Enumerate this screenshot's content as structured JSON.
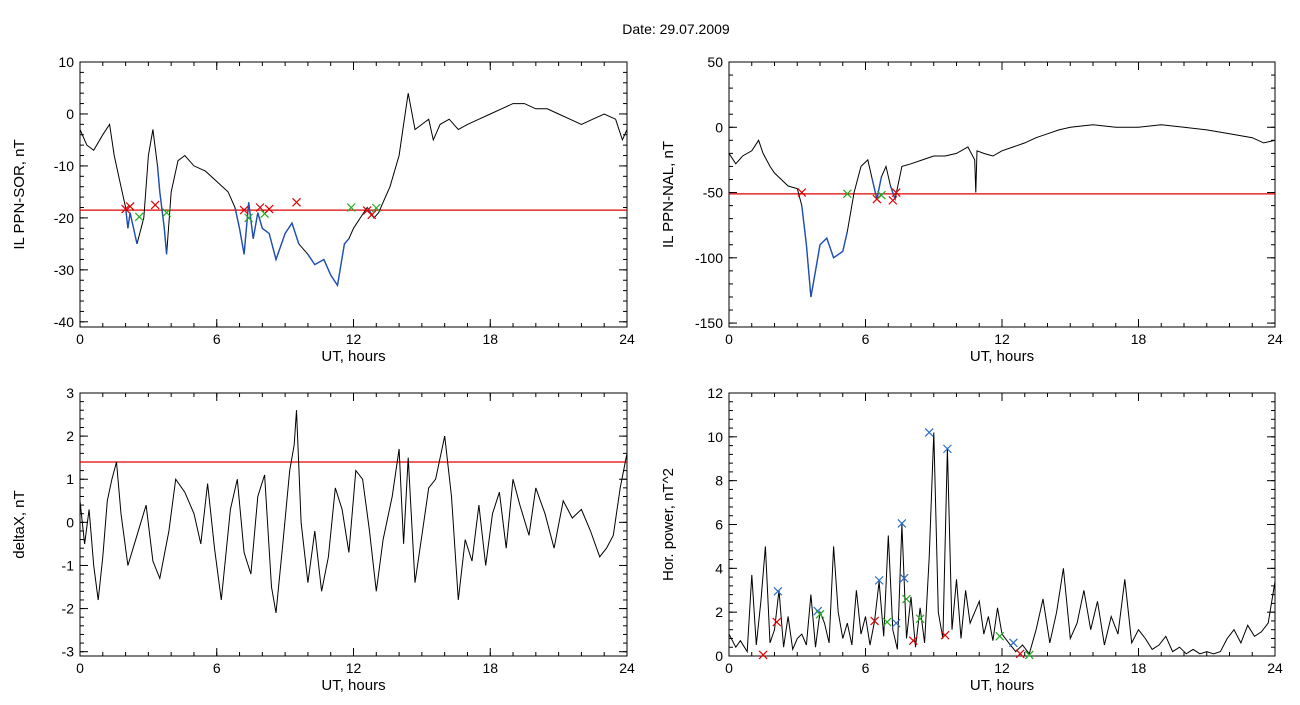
{
  "page": {
    "title": "Date:  29.07.2009"
  },
  "colors": {
    "threshold": "#e00000",
    "segment": "#1f4fb5",
    "line": "#000000",
    "cross_red": "#e00000",
    "cross_green": "#22aa22",
    "cross_blue": "#2b6cc4"
  },
  "chart_data": [
    {
      "type": "line",
      "id": "p1",
      "title": "",
      "xlabel": "UT, hours",
      "ylabel": "IL PPN-SOR, nT",
      "xlim": [
        0,
        24
      ],
      "ylim": [
        -41,
        10
      ],
      "xticks": [
        "0",
        "6",
        "12",
        "18",
        "24"
      ],
      "yticks": [
        "10",
        "0",
        "-10",
        "-20",
        "-30",
        "-40"
      ],
      "grid": false,
      "threshold": -18.5,
      "x": [
        0,
        0.3,
        0.6,
        1.0,
        1.3,
        1.5,
        1.8,
        2.0,
        2.1,
        2.2,
        2.5,
        2.8,
        3.0,
        3.2,
        3.4,
        3.5,
        3.7,
        3.8,
        4.0,
        4.3,
        4.6,
        5.0,
        5.5,
        6.0,
        6.5,
        6.8,
        7.0,
        7.2,
        7.4,
        7.6,
        7.8,
        8.0,
        8.3,
        8.6,
        9.0,
        9.3,
        9.6,
        10.0,
        10.3,
        10.7,
        11.0,
        11.3,
        11.6,
        11.8,
        12.0,
        12.3,
        12.6,
        12.9,
        13.1,
        13.3,
        13.6,
        14.0,
        14.2,
        14.4,
        14.7,
        15.0,
        15.3,
        15.5,
        15.8,
        16.2,
        16.6,
        17.0,
        17.5,
        18.0,
        18.5,
        19.0,
        19.5,
        20.0,
        20.5,
        21.0,
        21.5,
        22.0,
        22.5,
        23.0,
        23.5,
        23.8,
        24.0
      ],
      "y": [
        -3,
        -6,
        -7,
        -4,
        -2,
        -8,
        -14,
        -18,
        -22,
        -19,
        -25,
        -20,
        -8,
        -3,
        -10,
        -15,
        -22,
        -27,
        -15,
        -9,
        -8,
        -10,
        -11,
        -13,
        -15,
        -18,
        -22,
        -27,
        -17,
        -24,
        -19,
        -22,
        -23,
        -28,
        -23,
        -21,
        -25,
        -27,
        -29,
        -28,
        -31,
        -33,
        -25,
        -24,
        -22,
        -20,
        -18,
        -20,
        -19,
        -17,
        -14,
        -8,
        -2,
        4,
        -3,
        -2,
        -1,
        -5,
        -2,
        -1,
        -3,
        -2,
        -1,
        0,
        1,
        2,
        2,
        1,
        1,
        0,
        -1,
        -2,
        -1,
        0,
        -1,
        -5,
        -3
      ],
      "segments": [
        [
          2.0,
          2.7
        ],
        [
          3.3,
          3.9
        ],
        [
          6.8,
          9.7
        ],
        [
          9.7,
          11.9
        ],
        [
          12.5,
          13.0
        ]
      ],
      "crosses": [
        {
          "x": 2.0,
          "y": -18.3,
          "c": "red"
        },
        {
          "x": 2.2,
          "y": -17.8,
          "c": "red"
        },
        {
          "x": 2.6,
          "y": -19.8,
          "c": "green"
        },
        {
          "x": 3.3,
          "y": -17.5,
          "c": "red"
        },
        {
          "x": 3.8,
          "y": -19.0,
          "c": "green"
        },
        {
          "x": 7.2,
          "y": -18.5,
          "c": "red"
        },
        {
          "x": 7.4,
          "y": -20.0,
          "c": "green"
        },
        {
          "x": 7.9,
          "y": -18.0,
          "c": "red"
        },
        {
          "x": 8.1,
          "y": -19.2,
          "c": "green"
        },
        {
          "x": 8.3,
          "y": -18.3,
          "c": "red"
        },
        {
          "x": 9.5,
          "y": -17.0,
          "c": "red"
        },
        {
          "x": 11.9,
          "y": -18.0,
          "c": "green"
        },
        {
          "x": 12.6,
          "y": -18.6,
          "c": "red"
        },
        {
          "x": 12.8,
          "y": -19.4,
          "c": "red"
        },
        {
          "x": 13.0,
          "y": -18.1,
          "c": "green"
        }
      ]
    },
    {
      "type": "line",
      "id": "p2",
      "title": "",
      "xlabel": "UT, hours",
      "ylabel": "IL PPN-NAL, nT",
      "xlim": [
        0,
        24
      ],
      "ylim": [
        -153,
        50
      ],
      "xticks": [
        "0",
        "6",
        "12",
        "18",
        "24"
      ],
      "yticks": [
        "50",
        "0",
        "-50",
        "-100",
        "-150"
      ],
      "grid": false,
      "threshold": -51,
      "x": [
        0,
        0.3,
        0.6,
        1.0,
        1.3,
        1.5,
        1.8,
        2.0,
        2.3,
        2.6,
        3.0,
        3.2,
        3.4,
        3.6,
        3.8,
        4.0,
        4.3,
        4.6,
        5.0,
        5.2,
        5.5,
        5.8,
        6.1,
        6.3,
        6.5,
        6.7,
        6.9,
        7.1,
        7.3,
        7.6,
        8.0,
        8.5,
        9.0,
        9.5,
        10.0,
        10.5,
        10.8,
        10.85,
        10.9,
        11.2,
        11.6,
        12.0,
        12.5,
        13.0,
        13.5,
        14.0,
        14.5,
        15.0,
        16.0,
        17.0,
        18.0,
        19.0,
        20.0,
        21.0,
        22.0,
        23.0,
        23.5,
        24.0
      ],
      "y": [
        -20,
        -28,
        -22,
        -18,
        -10,
        -20,
        -30,
        -35,
        -40,
        -45,
        -47,
        -60,
        -90,
        -130,
        -110,
        -90,
        -85,
        -100,
        -95,
        -80,
        -50,
        -30,
        -25,
        -40,
        -55,
        -38,
        -30,
        -45,
        -55,
        -30,
        -28,
        -25,
        -22,
        -22,
        -20,
        -15,
        -25,
        -50,
        -18,
        -20,
        -22,
        -18,
        -15,
        -12,
        -8,
        -5,
        -2,
        0,
        2,
        0,
        0,
        2,
        0,
        -2,
        -5,
        -8,
        -12,
        -10
      ],
      "segments": [
        [
          3.2,
          5.2
        ],
        [
          6.3,
          6.7
        ],
        [
          7.0,
          7.4
        ]
      ],
      "crosses": [
        {
          "x": 3.2,
          "y": -50,
          "c": "red"
        },
        {
          "x": 5.2,
          "y": -51,
          "c": "green"
        },
        {
          "x": 6.5,
          "y": -55,
          "c": "red"
        },
        {
          "x": 6.7,
          "y": -52,
          "c": "green"
        },
        {
          "x": 7.2,
          "y": -56,
          "c": "red"
        },
        {
          "x": 7.35,
          "y": -50,
          "c": "red"
        }
      ]
    },
    {
      "type": "line",
      "id": "p3",
      "title": "",
      "xlabel": "UT, hours",
      "ylabel": "deltaX, nT",
      "xlim": [
        0,
        24
      ],
      "ylim": [
        -3.1,
        3.0
      ],
      "xticks": [
        "0",
        "6",
        "12",
        "18",
        "24"
      ],
      "yticks": [
        "3",
        "2",
        "1",
        "0",
        "-1",
        "-2",
        "-3"
      ],
      "grid": false,
      "threshold": 1.4,
      "x": [
        0,
        0.2,
        0.4,
        0.6,
        0.8,
        1.0,
        1.2,
        1.4,
        1.6,
        1.8,
        2.1,
        2.5,
        2.9,
        3.2,
        3.5,
        3.9,
        4.2,
        4.6,
        5.0,
        5.3,
        5.6,
        5.9,
        6.2,
        6.6,
        6.9,
        7.2,
        7.5,
        7.8,
        8.1,
        8.4,
        8.6,
        8.9,
        9.2,
        9.4,
        9.5,
        9.7,
        10.0,
        10.3,
        10.6,
        10.9,
        11.2,
        11.5,
        11.8,
        12.1,
        12.4,
        12.7,
        13.0,
        13.3,
        13.7,
        14.0,
        14.2,
        14.4,
        14.7,
        15.0,
        15.3,
        15.6,
        16.0,
        16.3,
        16.6,
        16.9,
        17.2,
        17.5,
        17.8,
        18.1,
        18.4,
        18.7,
        19.0,
        19.3,
        19.7,
        20.0,
        20.4,
        20.8,
        21.2,
        21.6,
        22.0,
        22.4,
        22.8,
        23.1,
        23.4,
        23.7,
        24.0
      ],
      "y": [
        0.5,
        -0.5,
        0.3,
        -1.0,
        -1.8,
        -0.8,
        0.5,
        1.0,
        1.4,
        0.2,
        -1.0,
        -0.3,
        0.4,
        -0.9,
        -1.3,
        -0.2,
        1.0,
        0.7,
        0.2,
        -0.5,
        0.9,
        -0.6,
        -1.8,
        0.3,
        1.0,
        -0.7,
        -1.2,
        0.6,
        1.1,
        -1.5,
        -2.1,
        -0.5,
        1.2,
        1.8,
        2.6,
        0.0,
        -1.4,
        -0.2,
        -1.6,
        -0.8,
        0.8,
        0.3,
        -0.7,
        1.2,
        1.0,
        -0.2,
        -1.6,
        -0.4,
        0.6,
        1.7,
        -0.5,
        1.5,
        -1.4,
        -0.3,
        0.8,
        1.0,
        2.0,
        0.6,
        -1.8,
        -0.4,
        -0.9,
        0.4,
        -1.0,
        0.2,
        0.7,
        -0.6,
        1.0,
        0.4,
        -0.3,
        0.8,
        0.2,
        -0.6,
        0.5,
        0.1,
        0.3,
        -0.2,
        -0.8,
        -0.6,
        -0.3,
        0.8,
        1.6
      ],
      "segments": [],
      "crosses": []
    },
    {
      "type": "line",
      "id": "p4",
      "title": "",
      "xlabel": "UT, hours",
      "ylabel": "Hor. power, nT^2",
      "xlim": [
        0,
        24
      ],
      "ylim": [
        0,
        12
      ],
      "xticks": [
        "0",
        "6",
        "12",
        "18",
        "24"
      ],
      "yticks": [
        "12",
        "10",
        "8",
        "6",
        "4",
        "2",
        "0"
      ],
      "grid": false,
      "threshold": null,
      "x": [
        0,
        0.3,
        0.5,
        0.8,
        1.0,
        1.2,
        1.4,
        1.6,
        1.8,
        2.0,
        2.2,
        2.4,
        2.6,
        2.8,
        3.0,
        3.2,
        3.4,
        3.6,
        3.8,
        4.0,
        4.2,
        4.4,
        4.6,
        4.8,
        5.0,
        5.2,
        5.4,
        5.6,
        5.8,
        6.0,
        6.2,
        6.4,
        6.6,
        6.8,
        7.0,
        7.2,
        7.4,
        7.6,
        7.8,
        8.0,
        8.2,
        8.4,
        8.6,
        8.8,
        9.0,
        9.2,
        9.4,
        9.6,
        9.8,
        10.0,
        10.2,
        10.4,
        10.6,
        10.8,
        11.0,
        11.2,
        11.4,
        11.6,
        11.8,
        12.0,
        12.3,
        12.6,
        12.9,
        13.2,
        13.5,
        13.8,
        14.1,
        14.4,
        14.7,
        15.0,
        15.3,
        15.6,
        15.9,
        16.2,
        16.5,
        16.8,
        17.1,
        17.4,
        17.7,
        18.0,
        18.3,
        18.6,
        18.9,
        19.2,
        19.5,
        19.8,
        20.1,
        20.4,
        20.7,
        21.0,
        21.3,
        21.6,
        21.9,
        22.2,
        22.5,
        22.8,
        23.1,
        23.4,
        23.7,
        24.0
      ],
      "y": [
        1.0,
        0.4,
        0.7,
        0.2,
        3.7,
        0.5,
        2.5,
        5.0,
        0.6,
        1.2,
        3.0,
        0.4,
        1.8,
        0.3,
        0.8,
        1.0,
        0.5,
        2.8,
        0.4,
        2.0,
        1.5,
        0.6,
        5.0,
        2.0,
        0.8,
        1.5,
        0.5,
        3.0,
        1.0,
        1.8,
        0.5,
        1.6,
        3.4,
        0.9,
        5.5,
        1.2,
        0.3,
        6.0,
        0.8,
        2.7,
        0.4,
        2.2,
        0.6,
        4.5,
        10.2,
        2.0,
        0.8,
        9.5,
        1.2,
        3.5,
        0.8,
        3.0,
        1.5,
        2.0,
        2.5,
        1.0,
        1.8,
        0.7,
        2.2,
        1.0,
        0.6,
        0.2,
        0.5,
        0.1,
        1.2,
        2.6,
        0.6,
        2.0,
        4.0,
        0.8,
        1.5,
        3.0,
        1.2,
        2.5,
        0.5,
        1.8,
        1.0,
        3.5,
        0.6,
        1.2,
        0.8,
        0.3,
        0.5,
        0.9,
        0.2,
        0.4,
        0.1,
        0.3,
        0.1,
        0.2,
        0.1,
        0.2,
        0.8,
        1.2,
        0.6,
        1.4,
        0.9,
        1.1,
        1.5,
        3.4
      ],
      "segments": [],
      "crosses": [
        {
          "x": 2.15,
          "y": 2.95,
          "c": "blue"
        },
        {
          "x": 3.9,
          "y": 2.05,
          "c": "blue"
        },
        {
          "x": 6.6,
          "y": 3.45,
          "c": "blue"
        },
        {
          "x": 7.6,
          "y": 6.05,
          "c": "blue"
        },
        {
          "x": 7.7,
          "y": 3.55,
          "c": "blue"
        },
        {
          "x": 7.35,
          "y": 1.5,
          "c": "blue"
        },
        {
          "x": 8.8,
          "y": 10.2,
          "c": "blue"
        },
        {
          "x": 9.6,
          "y": 9.45,
          "c": "blue"
        },
        {
          "x": 12.5,
          "y": 0.6,
          "c": "blue"
        },
        {
          "x": 2.1,
          "y": 1.55,
          "c": "red"
        },
        {
          "x": 1.5,
          "y": 0.05,
          "c": "red"
        },
        {
          "x": 4.0,
          "y": 1.9,
          "c": "green"
        },
        {
          "x": 6.4,
          "y": 1.6,
          "c": "red"
        },
        {
          "x": 6.95,
          "y": 1.55,
          "c": "green"
        },
        {
          "x": 7.8,
          "y": 2.6,
          "c": "green"
        },
        {
          "x": 8.1,
          "y": 0.7,
          "c": "red"
        },
        {
          "x": 8.4,
          "y": 1.7,
          "c": "green"
        },
        {
          "x": 9.5,
          "y": 0.95,
          "c": "red"
        },
        {
          "x": 11.9,
          "y": 0.9,
          "c": "green"
        },
        {
          "x": 12.8,
          "y": 0.1,
          "c": "red"
        },
        {
          "x": 13.2,
          "y": 0.05,
          "c": "green"
        }
      ]
    }
  ]
}
